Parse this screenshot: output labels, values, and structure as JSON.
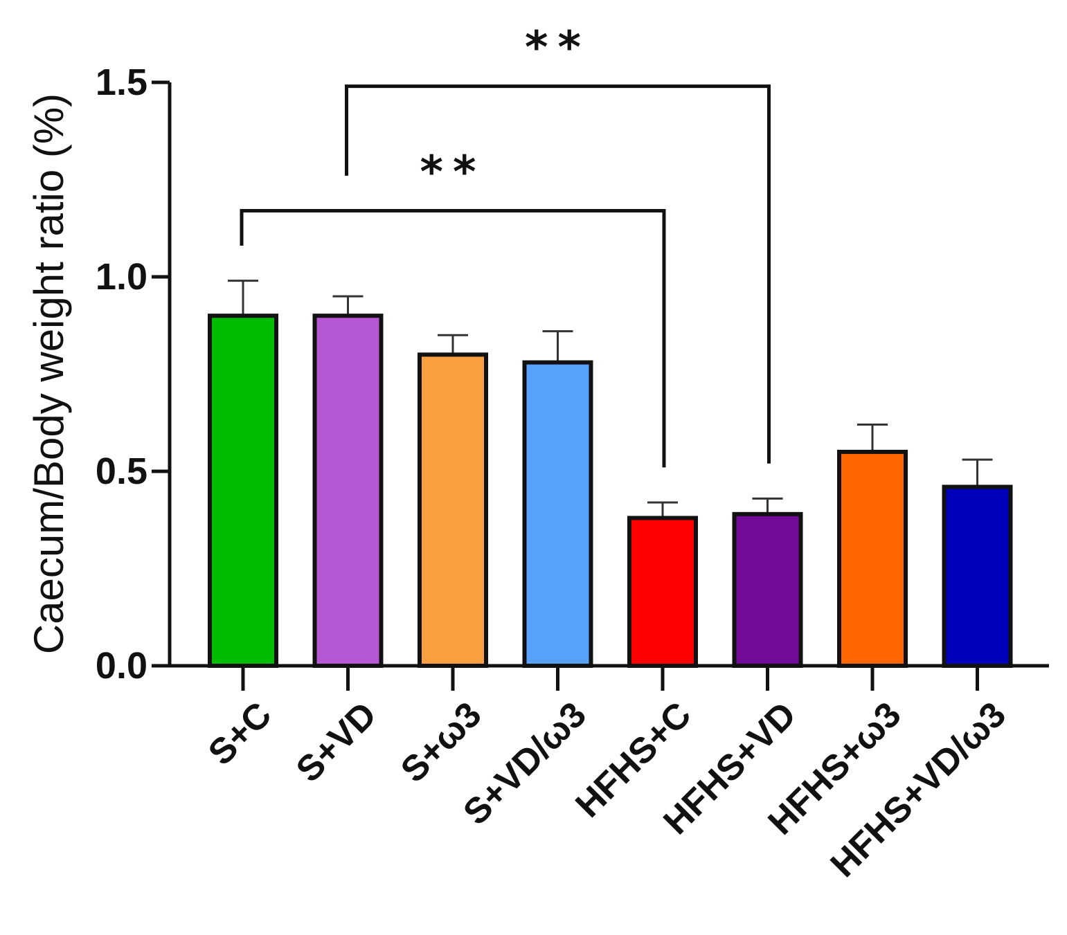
{
  "chart_data": {
    "type": "bar",
    "title": "",
    "xlabel": "",
    "ylabel": "Caecum/Body weight ratio (%)",
    "ylim": [
      0,
      1.5
    ],
    "yticks": [
      0.0,
      0.5,
      1.0,
      1.5
    ],
    "ytick_labels": [
      "0.0",
      "0.5",
      "1.0",
      "1.5"
    ],
    "categories": [
      "S+C",
      "S+VD",
      "S+ω3",
      "S+VD/ω3",
      "HFHS+C",
      "HFHS+VD",
      "HFHS+ω3",
      "HFHS+VD/ω3"
    ],
    "values": [
      0.9,
      0.9,
      0.8,
      0.78,
      0.38,
      0.39,
      0.55,
      0.46
    ],
    "errors": [
      0.09,
      0.05,
      0.05,
      0.08,
      0.04,
      0.04,
      0.07,
      0.07
    ],
    "colors": [
      "#00BB00",
      "#B657D4",
      "#FBA040",
      "#57A1FB",
      "#FF0000",
      "#720B97",
      "#FF6600",
      "#0000BB"
    ],
    "significance": [
      {
        "from": "S+C",
        "to": "HFHS+C",
        "label": "**",
        "y": 1.17,
        "drop_left": 1.08,
        "drop_right": 0.51
      },
      {
        "from": "S+VD",
        "to": "HFHS+VD",
        "label": "**",
        "y": 1.49,
        "drop_left": 1.26,
        "drop_right": 0.52
      }
    ]
  }
}
